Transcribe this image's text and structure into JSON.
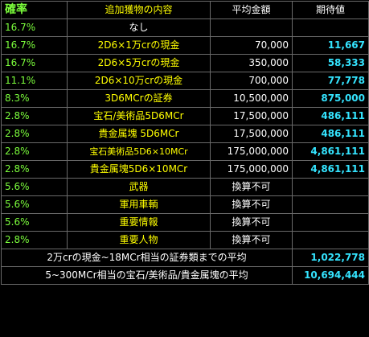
{
  "headers": {
    "rate": "確率",
    "item": "追加獲物の内容",
    "amount": "平均金額",
    "expected": "期待値"
  },
  "rows": [
    {
      "rate": "16.7%",
      "item": "なし",
      "amount": "",
      "expected": ""
    },
    {
      "rate": "16.7%",
      "item": "2D6×1万crの現金",
      "amount": "70,000",
      "expected": "11,667"
    },
    {
      "rate": "16.7%",
      "item": "2D6×5万crの現金",
      "amount": "350,000",
      "expected": "58,333"
    },
    {
      "rate": "11.1%",
      "item": "2D6×10万crの現金",
      "amount": "700,000",
      "expected": "77,778"
    },
    {
      "rate": "8.3%",
      "item": "3D6MCrの証券",
      "amount": "10,500,000",
      "expected": "875,000"
    },
    {
      "rate": "2.8%",
      "item": "宝石/美術品5D6MCr",
      "amount": "17,500,000",
      "expected": "486,111"
    },
    {
      "rate": "2.8%",
      "item": "貴金属塊 5D6MCr",
      "amount": "17,500,000",
      "expected": "486,111"
    },
    {
      "rate": "2.8%",
      "item": "宝石美術品5D6×10MCr",
      "amount": "175,000,000",
      "expected": "4,861,111"
    },
    {
      "rate": "2.8%",
      "item": "貴金属塊5D6×10MCr",
      "amount": "175,000,000",
      "expected": "4,861,111"
    },
    {
      "rate": "5.6%",
      "item": "武器",
      "amount": "換算不可",
      "expected": ""
    },
    {
      "rate": "5.6%",
      "item": "軍用車輌",
      "amount": "換算不可",
      "expected": ""
    },
    {
      "rate": "5.6%",
      "item": "重要情報",
      "amount": "換算不可",
      "expected": ""
    },
    {
      "rate": "2.8%",
      "item": "重要人物",
      "amount": "換算不可",
      "expected": ""
    }
  ],
  "summary": [
    {
      "label": "2万crの現金~18MCr相当の証券類までの平均",
      "value": "1,022,778"
    },
    {
      "label": "5~300MCr相当の宝石/美術品/貴金属塊の平均",
      "value": "10,694,444"
    }
  ]
}
